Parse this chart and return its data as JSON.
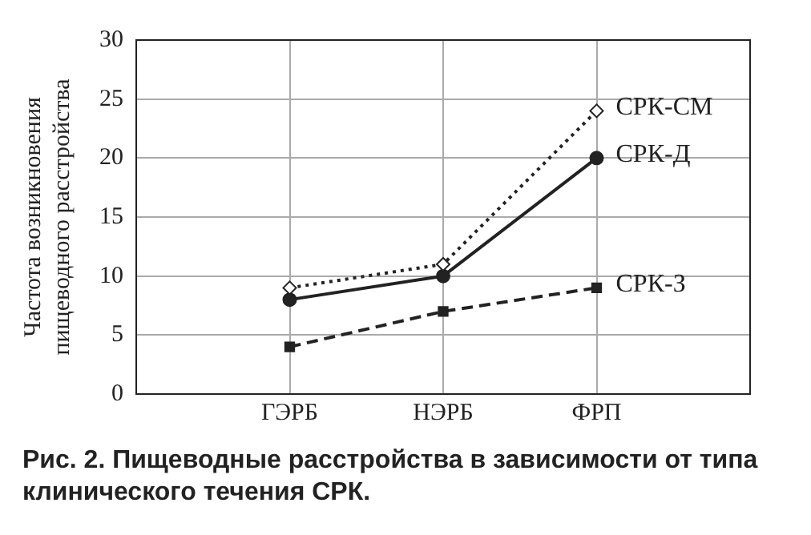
{
  "chart_data": {
    "type": "line",
    "ylabel": "Частота возникновения пищеводного расстройства",
    "categories": [
      "ГЭРБ",
      "НЭРБ",
      "ФРП"
    ],
    "series": [
      {
        "name": "СРК-СМ",
        "color": "#222222",
        "values": [
          9,
          11,
          24
        ],
        "marker": "diamond",
        "line_style": "dotted"
      },
      {
        "name": "СРК-Д",
        "color": "#222222",
        "values": [
          8,
          10,
          20
        ],
        "marker": "circle",
        "line_style": "solid"
      },
      {
        "name": "СРК-З",
        "color": "#222222",
        "values": [
          4,
          7,
          9
        ],
        "marker": "square",
        "line_style": "dashed"
      }
    ],
    "ylim": [
      0,
      30
    ],
    "yticks": [
      0,
      5,
      10,
      15,
      20,
      25,
      30
    ],
    "grid": true,
    "legend": false,
    "annotations": [
      "Рис. 2. Пищеводные расстройства в зависимости от типа клинического течения СРК."
    ]
  }
}
